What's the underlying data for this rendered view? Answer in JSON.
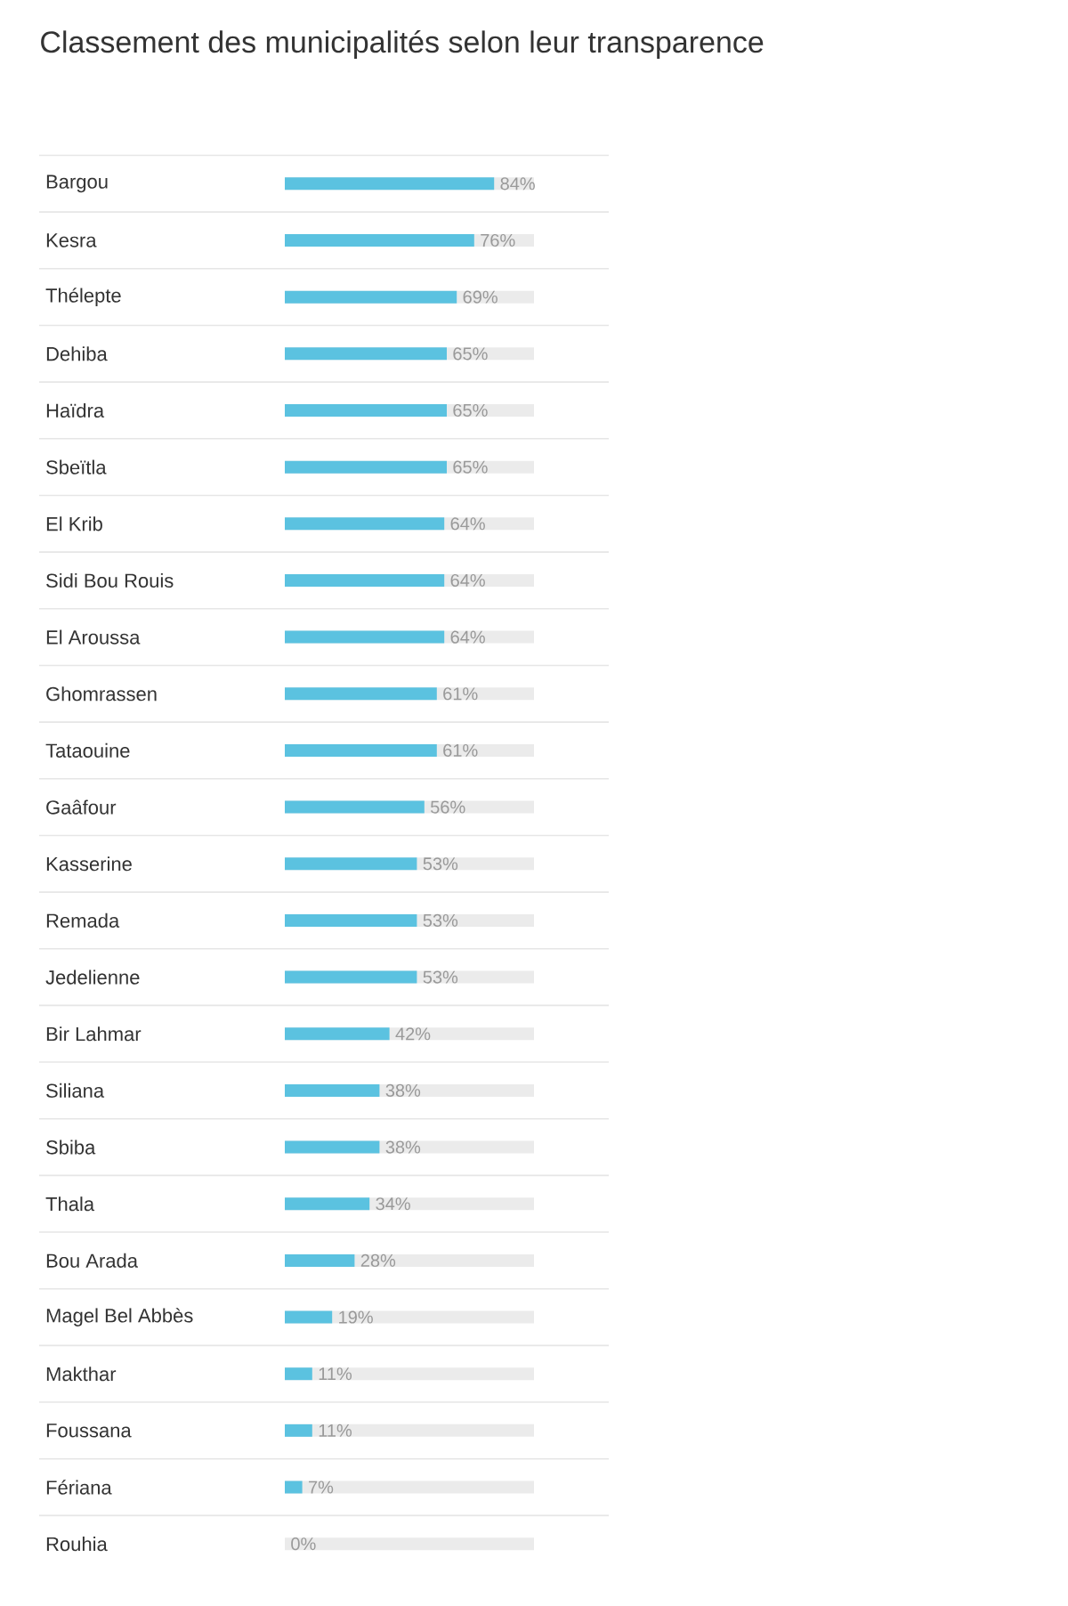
{
  "chart_data": {
    "type": "bar",
    "orientation": "horizontal",
    "title": "Classement des municipalités selon leur transparence",
    "categories": [
      "Bargou",
      "Kesra",
      "Thélepte",
      "Dehiba",
      "Haïdra",
      "Sbeïtla",
      "El Krib",
      "Sidi Bou Rouis",
      "El Aroussa",
      "Ghomrassen",
      "Tataouine",
      "Gaâfour",
      "Kasserine",
      "Remada",
      "Jedelienne",
      "Bir Lahmar",
      "Siliana",
      "Sbiba",
      "Thala",
      "Bou Arada",
      "Magel Bel Abbès",
      "Makthar",
      "Foussana",
      "Fériana",
      "Rouhia"
    ],
    "series": [
      {
        "color": "#5bc2e0",
        "values": [
          84,
          76,
          69,
          65,
          65,
          65,
          64,
          64,
          64,
          61,
          61,
          56,
          53,
          53,
          53,
          42,
          38,
          38,
          34,
          28,
          19,
          11,
          11,
          7,
          0
        ],
        "value_labels": [
          "84%",
          "76%",
          "69%",
          "65%",
          "65%",
          "65%",
          "64%",
          "64%",
          "64%",
          "61%",
          "61%",
          "56%",
          "53%",
          "53%",
          "53%",
          "42%",
          "38%",
          "38%",
          "34%",
          "28%",
          "19%",
          "11%",
          "11%",
          "7%",
          "0%"
        ]
      }
    ],
    "xlim": [
      0,
      100
    ],
    "tick_labels": "y",
    "grid": "y"
  }
}
